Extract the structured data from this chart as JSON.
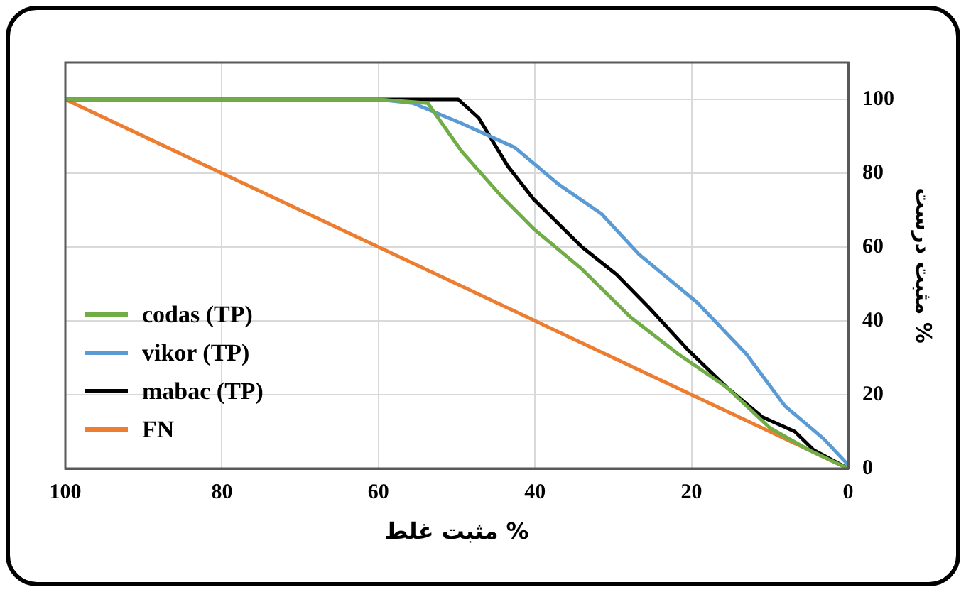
{
  "chart_data": {
    "type": "line",
    "xlabel": "مثبت غلط %",
    "ylabel": "مثبت درست %",
    "xlim": [
      100,
      0
    ],
    "xticks": [
      100,
      80,
      60,
      40,
      20,
      0
    ],
    "ylim": [
      0,
      110
    ],
    "yticks": [
      0,
      20,
      40,
      60,
      80,
      100
    ],
    "grid": true,
    "legend": "bottom left",
    "marker": "none",
    "line_style": "solid",
    "series": [
      {
        "name": "codas (TP)",
        "color": "#70ad47",
        "x": [
          100,
          60,
          53.7,
          49.4,
          44.4,
          40.2,
          34,
          27.8,
          21.7,
          15.5,
          10,
          5,
          0
        ],
        "values": [
          100,
          100,
          99,
          86,
          74,
          65,
          54,
          41,
          31,
          22,
          11,
          5,
          0
        ]
      },
      {
        "name": "vikor (TP)",
        "color": "#5b9bd5",
        "x": [
          100,
          60,
          55.6,
          49.4,
          42.6,
          37,
          31.5,
          26.7,
          19.3,
          13,
          8.1,
          3.1,
          0
        ],
        "values": [
          100,
          100,
          99,
          93.5,
          87,
          77,
          69,
          58,
          45,
          31,
          17,
          8,
          1
        ]
      },
      {
        "name": "mabac (TP)",
        "color": "#000000",
        "x": [
          100,
          60,
          49.8,
          47.2,
          43.5,
          40.2,
          34,
          29.6,
          25.4,
          20.4,
          15.5,
          11,
          6.8,
          4.4,
          0
        ],
        "values": [
          100,
          100,
          100,
          95,
          82,
          73,
          60,
          52.6,
          43.5,
          32,
          22,
          14,
          10,
          5,
          0
        ]
      },
      {
        "name": "FN",
        "color": "#ed7d31",
        "x": [
          100,
          0
        ],
        "values": [
          100,
          0
        ]
      }
    ]
  }
}
